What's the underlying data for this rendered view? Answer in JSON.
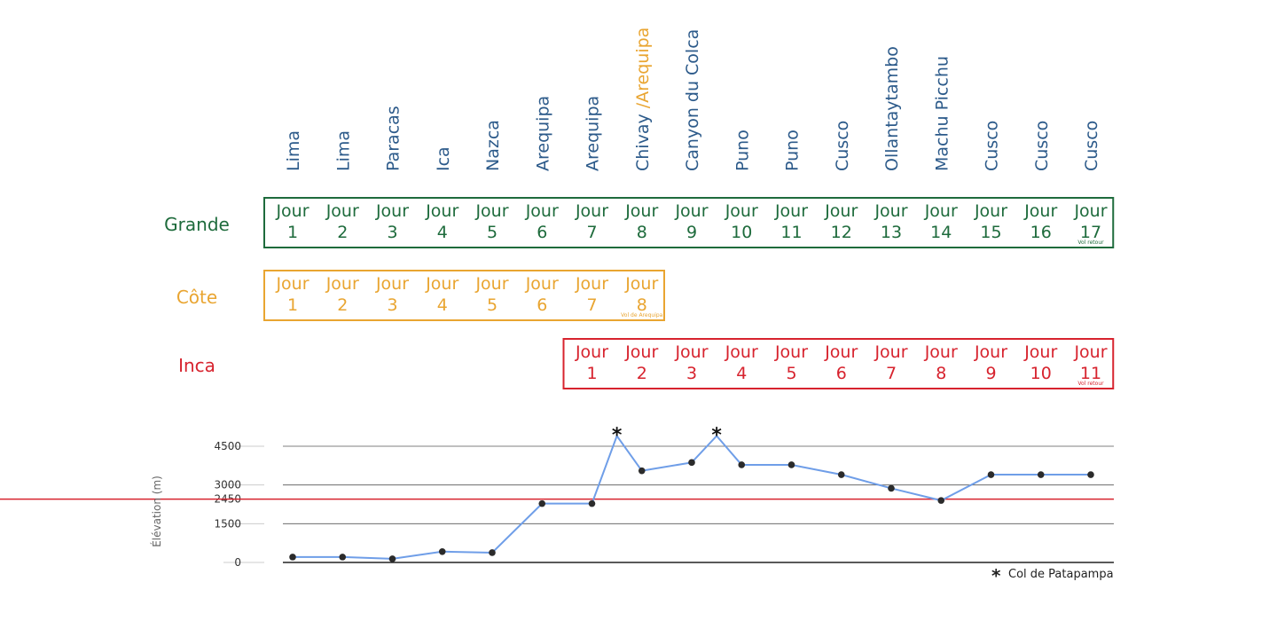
{
  "places": [
    "Lima",
    "Lima",
    "Paracas",
    "Ica",
    "Nazca",
    "Arequipa",
    "Arequipa",
    "Chivay",
    "Canyon du Colca",
    "Puno",
    "Puno",
    "Cusco",
    "Ollantaytambo",
    "Machu Picchu",
    "Cusco",
    "Cusco",
    "Cusco"
  ],
  "place_accent": {
    "index": 7,
    "text": " /Arequipa"
  },
  "day_prefix": "Jour",
  "itineraries": [
    {
      "name": "Grande",
      "color": "#1e6b3c",
      "start_col": 0,
      "days": 17,
      "note": "Vol retour"
    },
    {
      "name": "Côte",
      "color": "#e9a531",
      "start_col": 0,
      "days": 8,
      "note": "Vol de Arequipa"
    },
    {
      "name": "Inca",
      "color": "#d7232e",
      "start_col": 6,
      "days": 11,
      "note": "Vol retour"
    }
  ],
  "chart_data": {
    "type": "line",
    "ylabel": "Élévation (m)",
    "yticks": [
      0,
      1500,
      2450,
      3000,
      4500
    ],
    "ylim": [
      0,
      4500
    ],
    "reference_line": {
      "value": 2450,
      "color": "#d7232e"
    },
    "series": [
      {
        "color": "#6f9ee8",
        "x": [
          1,
          2,
          3,
          4,
          5,
          6,
          7,
          7.5,
          8,
          9,
          9.5,
          10,
          11,
          12,
          13,
          14,
          15,
          16,
          17
        ],
        "y": [
          210,
          210,
          140,
          420,
          380,
          2280,
          2280,
          4900,
          3550,
          3870,
          4900,
          3780,
          3780,
          3400,
          2870,
          2400,
          3400,
          3400,
          3400
        ],
        "markers": [
          true,
          true,
          true,
          true,
          true,
          true,
          true,
          false,
          true,
          true,
          false,
          true,
          true,
          true,
          true,
          true,
          true,
          true,
          true
        ]
      }
    ],
    "annotations": [
      {
        "x": 7.5,
        "label": "*"
      },
      {
        "x": 9.5,
        "label": "*"
      }
    ],
    "legend": {
      "symbol": "*",
      "text": "Col de Patapampa",
      "placement": "bottom-right"
    }
  }
}
